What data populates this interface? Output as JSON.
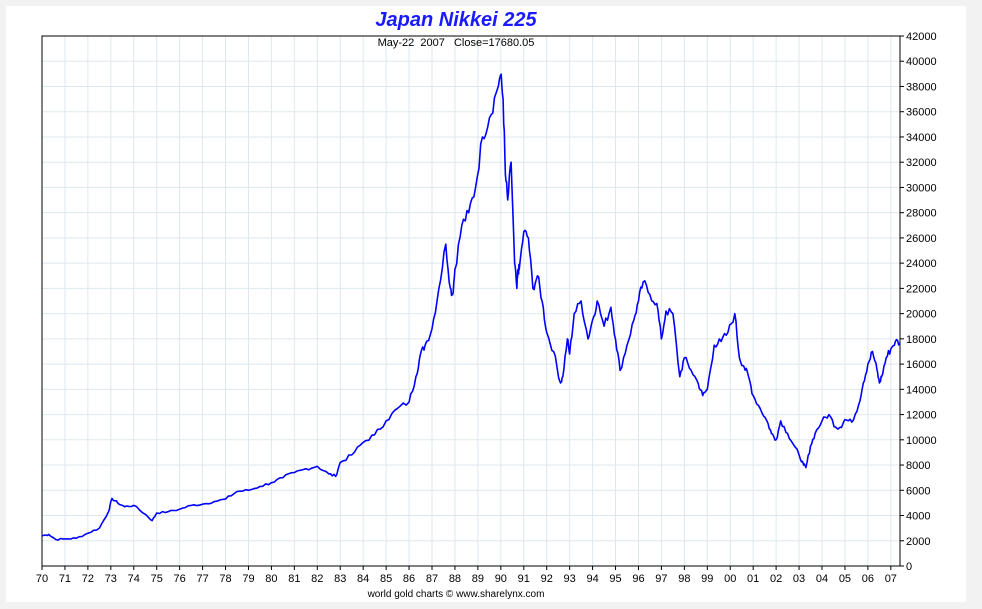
{
  "chart_data": {
    "type": "line",
    "title": "Japan Nikkei 225",
    "subtitle": "May-22  2007   Close=17680.05",
    "credit": "world gold charts © www.sharelynx.com",
    "y_axis_side": "right",
    "grid": true,
    "ylim": [
      0,
      42000
    ],
    "yticks": [
      0,
      2000,
      4000,
      6000,
      8000,
      10000,
      12000,
      14000,
      16000,
      18000,
      20000,
      22000,
      24000,
      26000,
      28000,
      30000,
      32000,
      34000,
      36000,
      38000,
      40000,
      42000
    ],
    "xlim": [
      1970.0,
      2007.4
    ],
    "xtick_labels": [
      "70",
      "71",
      "72",
      "73",
      "74",
      "75",
      "76",
      "77",
      "78",
      "79",
      "80",
      "81",
      "82",
      "83",
      "84",
      "85",
      "86",
      "87",
      "88",
      "89",
      "90",
      "91",
      "92",
      "93",
      "94",
      "95",
      "96",
      "97",
      "98",
      "99",
      "00",
      "01",
      "02",
      "03",
      "04",
      "05",
      "06",
      "07"
    ],
    "xtick_years": [
      1970,
      1971,
      1972,
      1973,
      1974,
      1975,
      1976,
      1977,
      1978,
      1979,
      1980,
      1981,
      1982,
      1983,
      1984,
      1985,
      1986,
      1987,
      1988,
      1989,
      1990,
      1991,
      1992,
      1993,
      1994,
      1995,
      1996,
      1997,
      1998,
      1999,
      2000,
      2001,
      2002,
      2003,
      2004,
      2005,
      2006,
      2007
    ],
    "line_color": "#0000ff",
    "series": [
      {
        "x": [
          1970.0,
          1970.3,
          1970.6,
          1971.0,
          1971.5,
          1972.0,
          1972.5,
          1972.9,
          1973.05,
          1973.3,
          1973.6,
          1974.0,
          1974.5,
          1974.8,
          1975.0,
          1975.5,
          1976.0,
          1976.5,
          1977.0,
          1977.5,
          1978.0,
          1978.5,
          1979.0,
          1979.5,
          1980.0,
          1980.5,
          1981.0,
          1981.5,
          1982.0,
          1982.5,
          1982.8,
          1983.0,
          1983.5,
          1984.0,
          1984.5,
          1985.0,
          1985.5,
          1986.0,
          1986.3,
          1986.5,
          1986.7,
          1987.0,
          1987.3,
          1987.6,
          1987.8,
          1987.9,
          1988.0,
          1988.3,
          1988.6,
          1988.9,
          1989.2,
          1989.5,
          1989.8,
          1989.99,
          1990.1,
          1990.2,
          1990.3,
          1990.45,
          1990.6,
          1990.7,
          1990.75,
          1990.8,
          1991.0,
          1991.2,
          1991.4,
          1991.6,
          1991.8,
          1992.0,
          1992.3,
          1992.6,
          1992.7,
          1992.9,
          1993.0,
          1993.2,
          1993.5,
          1993.8,
          1994.0,
          1994.2,
          1994.5,
          1994.8,
          1995.0,
          1995.2,
          1995.5,
          1995.8,
          1996.0,
          1996.2,
          1996.5,
          1996.8,
          1997.0,
          1997.2,
          1997.5,
          1997.8,
          1998.0,
          1998.3,
          1998.6,
          1998.8,
          1999.0,
          1999.3,
          1999.6,
          1999.9,
          2000.2,
          2000.4,
          2000.6,
          2000.8,
          2001.0,
          2001.3,
          2001.6,
          2001.8,
          2002.0,
          2002.2,
          2002.5,
          2002.8,
          2003.0,
          2003.2,
          2003.3,
          2003.5,
          2003.7,
          2004.0,
          2004.3,
          2004.6,
          2004.8,
          2005.0,
          2005.3,
          2005.6,
          2005.8,
          2006.0,
          2006.2,
          2006.4,
          2006.5,
          2006.6,
          2006.8,
          2007.0,
          2007.2,
          2007.39
        ],
        "y": [
          2400,
          2500,
          2100,
          2150,
          2200,
          2600,
          3000,
          4300,
          5350,
          5000,
          4700,
          4800,
          4100,
          3600,
          4200,
          4300,
          4500,
          4800,
          4900,
          5100,
          5300,
          5900,
          6000,
          6300,
          6600,
          7000,
          7400,
          7700,
          7900,
          7300,
          7100,
          8200,
          8800,
          9800,
          10400,
          11500,
          12500,
          13000,
          15000,
          16800,
          17500,
          18800,
          22000,
          25500,
          22000,
          21500,
          23500,
          27000,
          28000,
          30000,
          34000,
          35500,
          37500,
          38900,
          37000,
          31000,
          29000,
          32000,
          24000,
          22000,
          23500,
          23500,
          26500,
          26000,
          22000,
          23000,
          21000,
          18500,
          17000,
          14500,
          15000,
          18000,
          16800,
          20000,
          21000,
          18000,
          19500,
          21000,
          19000,
          20500,
          18000,
          15500,
          17500,
          19500,
          21000,
          22500,
          21500,
          20800,
          18000,
          20200,
          20000,
          15000,
          16500,
          15500,
          14500,
          13500,
          14000,
          17500,
          17800,
          18500,
          20000,
          16500,
          15800,
          15000,
          13500,
          12500,
          11500,
          10500,
          10000,
          11500,
          10500,
          9500,
          8800,
          8000,
          7800,
          9500,
          10500,
          11500,
          12000,
          11000,
          11000,
          11600,
          11400,
          12800,
          14500,
          16000,
          17000,
          15500,
          14500,
          15000,
          16500,
          17200,
          17800,
          17680
        ]
      }
    ]
  }
}
